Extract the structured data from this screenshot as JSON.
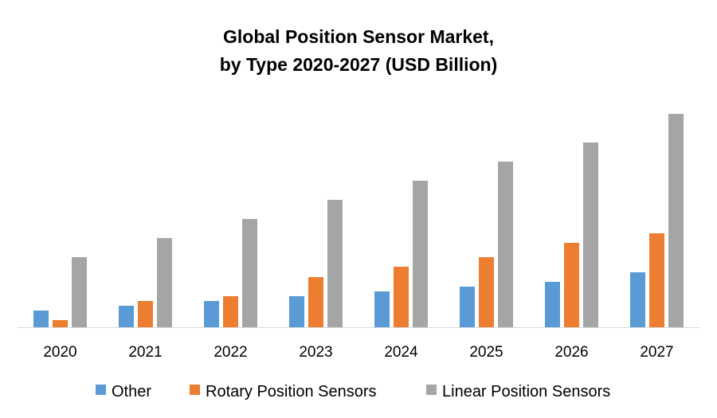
{
  "chart_data": {
    "type": "bar",
    "title": [
      "Global Position Sensor Market,",
      "by Type 2020-2027 (USD Billion)"
    ],
    "xlabel": "",
    "ylabel": "",
    "ylim": [
      0,
      30
    ],
    "grid": false,
    "legend_position": "bottom",
    "categories": [
      "2020",
      "2021",
      "2022",
      "2023",
      "2024",
      "2025",
      "2026",
      "2027"
    ],
    "series": [
      {
        "name": "Other",
        "color": "#5B9BD5",
        "values": [
          2.1,
          2.7,
          3.3,
          3.9,
          4.5,
          5.1,
          5.7,
          6.9
        ]
      },
      {
        "name": "Rotary Position Sensors",
        "color": "#ED7D31",
        "values": [
          0.9,
          3.3,
          3.9,
          6.3,
          7.6,
          8.8,
          10.6,
          11.8
        ]
      },
      {
        "name": "Linear Position Sensors",
        "color": "#A5A5A5",
        "values": [
          8.8,
          11.2,
          13.6,
          16.0,
          18.4,
          20.8,
          23.2,
          26.8
        ]
      }
    ]
  }
}
